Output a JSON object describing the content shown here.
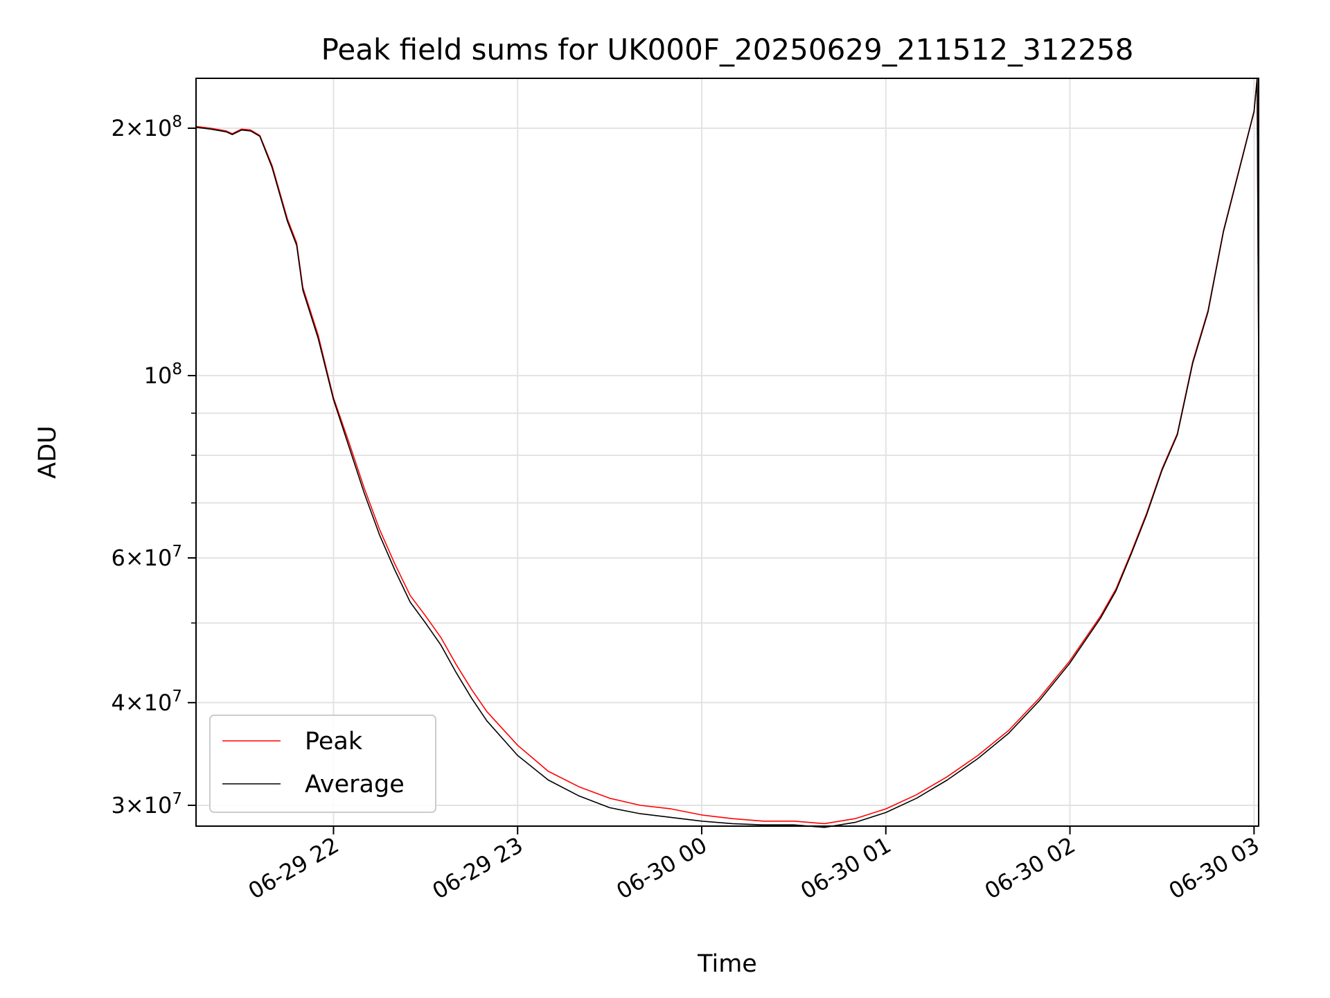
{
  "chart_data": {
    "type": "line",
    "title": "Peak field sums for UK000F_20250629_211512_312258",
    "xlabel": "Time",
    "ylabel": "ADU",
    "y_scale": "log",
    "ylim": [
      28300000,
      230000000
    ],
    "xlim": [
      "2025-06-29 21:15:12",
      "2025-06-30 03:01:30"
    ],
    "grid": true,
    "legend_position": "lower-left",
    "x_ticks": [
      {
        "value": "2025-06-29 22:00",
        "label": "06-29 22"
      },
      {
        "value": "2025-06-29 23:00",
        "label": "06-29 23"
      },
      {
        "value": "2025-06-30 00:00",
        "label": "06-30 00"
      },
      {
        "value": "2025-06-30 01:00",
        "label": "06-30 01"
      },
      {
        "value": "2025-06-30 02:00",
        "label": "06-30 02"
      },
      {
        "value": "2025-06-30 03:00",
        "label": "06-30 03"
      }
    ],
    "y_ticks": [
      {
        "value": 30000000,
        "mantissa": "3",
        "exponent": "7"
      },
      {
        "value": 40000000,
        "mantissa": "4",
        "exponent": "7"
      },
      {
        "value": 60000000,
        "mantissa": "6",
        "exponent": "7"
      },
      {
        "value": 100000000,
        "mantissa": "",
        "exponent": "8"
      },
      {
        "value": 200000000,
        "mantissa": "2",
        "exponent": "8"
      }
    ],
    "y_minor_ticks": [
      50000000,
      70000000,
      80000000,
      90000000
    ],
    "series": [
      {
        "name": "Peak",
        "color": "#ff0000",
        "x": [
          "2025-06-29 21:15:12",
          "2025-06-29 21:20",
          "2025-06-29 21:25",
          "2025-06-29 21:27",
          "2025-06-29 21:30",
          "2025-06-29 21:33",
          "2025-06-29 21:36",
          "2025-06-29 21:40",
          "2025-06-29 21:45",
          "2025-06-29 21:48",
          "2025-06-29 21:50",
          "2025-06-29 21:55",
          "2025-06-29 22:00",
          "2025-06-29 22:05",
          "2025-06-29 22:10",
          "2025-06-29 22:15",
          "2025-06-29 22:20",
          "2025-06-29 22:25",
          "2025-06-29 22:30",
          "2025-06-29 22:35",
          "2025-06-29 22:40",
          "2025-06-29 22:45",
          "2025-06-29 22:50",
          "2025-06-29 23:00",
          "2025-06-29 23:10",
          "2025-06-29 23:20",
          "2025-06-29 23:30",
          "2025-06-29 23:40",
          "2025-06-29 23:50",
          "2025-06-30 00:00",
          "2025-06-30 00:10",
          "2025-06-30 00:20",
          "2025-06-30 00:30",
          "2025-06-30 00:40",
          "2025-06-30 00:50",
          "2025-06-30 01:00",
          "2025-06-30 01:10",
          "2025-06-30 01:20",
          "2025-06-30 01:30",
          "2025-06-30 01:40",
          "2025-06-30 01:50",
          "2025-06-30 02:00",
          "2025-06-30 02:10",
          "2025-06-30 02:15",
          "2025-06-30 02:20",
          "2025-06-30 02:25",
          "2025-06-30 02:30",
          "2025-06-30 02:35",
          "2025-06-30 02:40",
          "2025-06-30 02:45",
          "2025-06-30 02:50",
          "2025-06-30 03:00",
          "2025-06-30 03:01",
          "2025-06-30 03:01:30"
        ],
        "values": [
          201000000,
          200000000,
          198500000,
          197000000,
          199500000,
          199000000,
          196000000,
          180000000,
          155000000,
          145000000,
          128000000,
          112000000,
          94000000,
          83000000,
          73000000,
          65000000,
          59000000,
          54000000,
          51000000,
          48000000,
          44500000,
          41500000,
          39000000,
          35500000,
          33000000,
          31600000,
          30600000,
          30000000,
          29700000,
          29200000,
          28900000,
          28700000,
          28700000,
          28500000,
          28900000,
          29700000,
          30900000,
          32500000,
          34500000,
          37000000,
          40500000,
          45000000,
          51000000,
          55000000,
          61000000,
          68000000,
          77000000,
          85000000,
          104000000,
          120000000,
          150000000,
          210000000,
          230000000,
          104000000
        ]
      },
      {
        "name": "Average",
        "color": "#000000",
        "x": [
          "2025-06-29 21:15:12",
          "2025-06-29 21:20",
          "2025-06-29 21:25",
          "2025-06-29 21:27",
          "2025-06-29 21:30",
          "2025-06-29 21:33",
          "2025-06-29 21:36",
          "2025-06-29 21:40",
          "2025-06-29 21:45",
          "2025-06-29 21:48",
          "2025-06-29 21:50",
          "2025-06-29 21:55",
          "2025-06-29 22:00",
          "2025-06-29 22:05",
          "2025-06-29 22:10",
          "2025-06-29 22:15",
          "2025-06-29 22:20",
          "2025-06-29 22:25",
          "2025-06-29 22:30",
          "2025-06-29 22:35",
          "2025-06-29 22:40",
          "2025-06-29 22:45",
          "2025-06-29 22:50",
          "2025-06-29 23:00",
          "2025-06-29 23:10",
          "2025-06-29 23:20",
          "2025-06-29 23:30",
          "2025-06-29 23:40",
          "2025-06-29 23:50",
          "2025-06-30 00:00",
          "2025-06-30 00:10",
          "2025-06-30 00:20",
          "2025-06-30 00:30",
          "2025-06-30 00:40",
          "2025-06-30 00:50",
          "2025-06-30 01:00",
          "2025-06-30 01:10",
          "2025-06-30 01:20",
          "2025-06-30 01:30",
          "2025-06-30 01:40",
          "2025-06-30 01:50",
          "2025-06-30 02:00",
          "2025-06-30 02:10",
          "2025-06-30 02:15",
          "2025-06-30 02:20",
          "2025-06-30 02:25",
          "2025-06-30 02:30",
          "2025-06-30 02:35",
          "2025-06-30 02:40",
          "2025-06-30 02:45",
          "2025-06-30 02:50",
          "2025-06-30 03:00",
          "2025-06-30 03:01",
          "2025-06-30 03:01:30"
        ],
        "values": [
          200500000,
          199500000,
          198000000,
          196500000,
          199000000,
          198500000,
          195500000,
          179000000,
          154000000,
          144000000,
          127000000,
          111000000,
          93500000,
          82000000,
          72000000,
          64000000,
          58000000,
          53000000,
          50000000,
          47000000,
          43500000,
          40500000,
          38000000,
          34500000,
          32200000,
          30800000,
          29800000,
          29300000,
          29000000,
          28700000,
          28500000,
          28400000,
          28400000,
          28200000,
          28600000,
          29400000,
          30600000,
          32200000,
          34200000,
          36700000,
          40200000,
          44700000,
          50700000,
          54700000,
          60700000,
          67700000,
          76700000,
          84700000,
          103500000,
          119500000,
          149500000,
          209500000,
          229500000,
          103500000
        ]
      }
    ]
  }
}
